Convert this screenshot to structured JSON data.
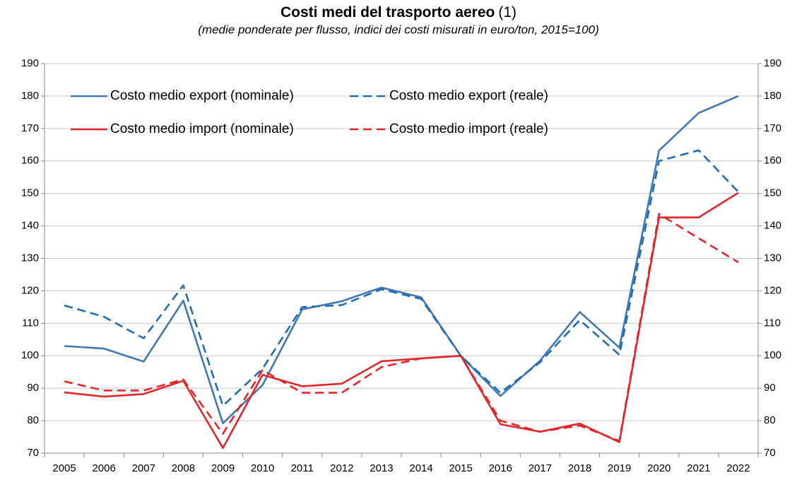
{
  "chart_data": {
    "type": "line",
    "title": "Costi medi del trasporto aereo",
    "title_note": "(1)",
    "subtitle": "(medie ponderate per flusso, indici dei costi misurati in euro/ton, 2015=100)",
    "categories": [
      "2005",
      "2006",
      "2007",
      "2008",
      "2009",
      "2010",
      "2011",
      "2012",
      "2013",
      "2014",
      "2015",
      "2016",
      "2017",
      "2018",
      "2019",
      "2020",
      "2021",
      "2022"
    ],
    "series": [
      {
        "name": "Costo medio export (nominale)",
        "color": "#3f78b5",
        "dash": false,
        "values": [
          103,
          102.2,
          98.2,
          117,
          79.2,
          91,
          114.3,
          116.8,
          121,
          118,
          100,
          87.6,
          98.5,
          113.5,
          102.5,
          163.2,
          174.8,
          180
        ]
      },
      {
        "name": "Costo medio export (reale)",
        "color": "#1f6db5",
        "dash": true,
        "values": [
          115.5,
          112,
          105.4,
          121.7,
          84.6,
          96,
          115,
          115.6,
          120.5,
          117.5,
          100,
          88.6,
          98,
          111,
          100.3,
          160,
          163.3,
          150.5
        ]
      },
      {
        "name": "Costo medio import (nominale)",
        "color": "#e3262a",
        "dash": false,
        "values": [
          88.7,
          87.4,
          88.2,
          92.3,
          71.6,
          94.1,
          90.6,
          91.4,
          98.3,
          99.2,
          100,
          78.9,
          76.6,
          79.1,
          73.4,
          142.6,
          142.6,
          150.2
        ]
      },
      {
        "name": "Costo medio import (reale)",
        "color": "#e3262a",
        "dash": true,
        "values": [
          92.1,
          89.3,
          89.3,
          92.7,
          76,
          95.6,
          88.6,
          88.6,
          96.5,
          99.2,
          100,
          80,
          76.6,
          78.5,
          73.8,
          143.7,
          136.2,
          128.8
        ]
      }
    ],
    "ylim": [
      70,
      190
    ],
    "yticks": [
      70,
      80,
      90,
      100,
      110,
      120,
      130,
      140,
      150,
      160,
      170,
      180,
      190
    ],
    "y2lim": [
      70,
      190
    ],
    "y2ticks": [
      70,
      80,
      90,
      100,
      110,
      120,
      130,
      140,
      150,
      160,
      170,
      180,
      190
    ],
    "grid": true
  }
}
